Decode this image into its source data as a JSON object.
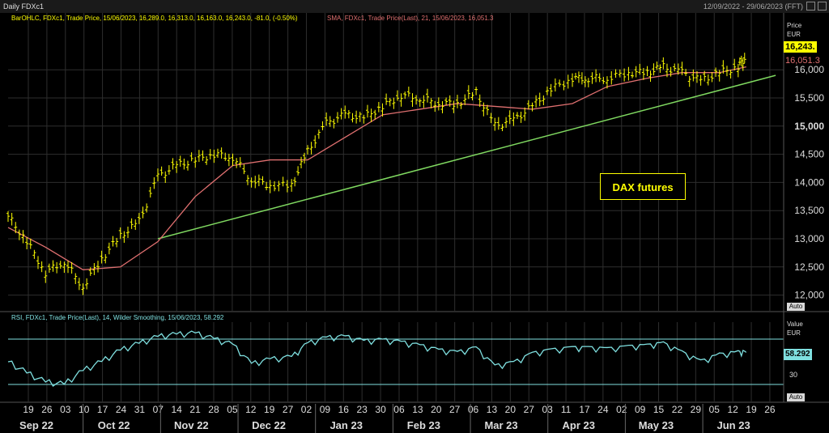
{
  "window": {
    "title": "Daily FDXc1",
    "date_range": "12/09/2022 - 29/06/2023 (FFT)"
  },
  "price_panel": {
    "legend_ohlc": "BarOHLC, FDXc1, Trade Price, 15/06/2023, 16,289.0, 16,313.0, 16,163.0, 16,243.0, -81.0, (-0.50%)",
    "legend_sma": "SMA, FDXc1, Trade Price(Last),  21, 15/06/2023, 16,051.3",
    "axis_title": "Price",
    "axis_unit": "EUR",
    "auto_label": "Auto",
    "last_price_tag": "16,243.",
    "sma_tag": "16,051.3",
    "callout": "DAX futures",
    "yticks": [
      "12,000",
      "12,500",
      "13,000",
      "13,500",
      "14,000",
      "14,500",
      "15,000",
      "15,500",
      "16,000"
    ]
  },
  "rsi_panel": {
    "legend": "RSI, FDXc1, Trade Price(Last),  14, Wilder Smoothing, 15/06/2023, 58.292",
    "axis_title": "Value",
    "axis_unit": "EUR",
    "auto_label": "Auto",
    "value_tag": "58.292",
    "level_label": "30"
  },
  "x_axis": {
    "day_ticks": [
      "19",
      "26",
      "03",
      "10",
      "17",
      "24",
      "31",
      "07",
      "14",
      "21",
      "28",
      "05",
      "12",
      "19",
      "27",
      "02",
      "09",
      "16",
      "23",
      "30",
      "06",
      "13",
      "20",
      "27",
      "06",
      "13",
      "20",
      "27",
      "03",
      "11",
      "17",
      "24",
      "02",
      "09",
      "15",
      "22",
      "29",
      "05",
      "12",
      "19",
      "26"
    ],
    "months": [
      "Sep 22",
      "Oct 22",
      "Nov 22",
      "Dec 22",
      "Jan 23",
      "Feb 23",
      "Mar 23",
      "Apr 23",
      "May 23",
      "Jun 23"
    ]
  },
  "colors": {
    "ohlc": "#ffff00",
    "sma": "#e07070",
    "trendline": "#7fd860",
    "rsi": "#7fe0e0",
    "grid": "#2e2e2e",
    "tag_bg": "#ffff00"
  },
  "chart_data": {
    "type": "line",
    "title": "Daily FDXc1",
    "price_range": [
      11750,
      16750
    ],
    "rsi_levels": [
      30,
      70
    ],
    "series": [
      {
        "name": "BarOHLC, FDXc1, Trade Price",
        "x": [
          "2022-09-12",
          "2022-09-19",
          "2022-09-26",
          "2022-10-03",
          "2022-10-10",
          "2022-10-17",
          "2022-10-24",
          "2022-10-31",
          "2022-11-07",
          "2022-11-14",
          "2022-11-21",
          "2022-11-28",
          "2022-12-05",
          "2022-12-12",
          "2022-12-19",
          "2022-12-27",
          "2023-01-02",
          "2023-01-09",
          "2023-01-16",
          "2023-01-23",
          "2023-01-30",
          "2023-02-06",
          "2023-02-13",
          "2023-02-20",
          "2023-02-27",
          "2023-03-06",
          "2023-03-13",
          "2023-03-20",
          "2023-03-27",
          "2023-04-03",
          "2023-04-11",
          "2023-04-17",
          "2023-04-24",
          "2023-05-02",
          "2023-05-09",
          "2023-05-15",
          "2023-05-22",
          "2023-05-29",
          "2023-06-05",
          "2023-06-12",
          "2023-06-15"
        ],
        "values": [
          13400,
          12950,
          12400,
          12600,
          12150,
          12650,
          13050,
          13300,
          14100,
          14300,
          14400,
          14500,
          14450,
          14050,
          13950,
          13950,
          14550,
          15050,
          15200,
          15150,
          15350,
          15550,
          15500,
          15400,
          15400,
          15600,
          15000,
          15100,
          15350,
          15650,
          15850,
          15850,
          15850,
          15950,
          15950,
          16050,
          15950,
          15800,
          15950,
          16050,
          16243
        ]
      },
      {
        "name": "SMA, FDXc1, Trade Price(Last), 21",
        "x": [
          "2022-09-12",
          "2022-09-26",
          "2022-10-10",
          "2022-10-24",
          "2022-11-07",
          "2022-11-21",
          "2022-12-05",
          "2022-12-19",
          "2023-01-02",
          "2023-01-16",
          "2023-01-30",
          "2023-02-13",
          "2023-02-27",
          "2023-03-13",
          "2023-03-27",
          "2023-04-11",
          "2023-04-24",
          "2023-05-09",
          "2023-05-22",
          "2023-06-05",
          "2023-06-15"
        ],
        "values": [
          13200,
          12850,
          12450,
          12500,
          12950,
          13750,
          14300,
          14400,
          14400,
          14800,
          15200,
          15300,
          15400,
          15350,
          15300,
          15400,
          15700,
          15850,
          15950,
          15950,
          16051.3
        ]
      },
      {
        "name": "RSI, FDXc1, Trade Price(Last), 14, Wilder Smoothing",
        "x": [
          "2022-09-12",
          "2022-09-19",
          "2022-09-26",
          "2022-10-03",
          "2022-10-10",
          "2022-10-17",
          "2022-10-24",
          "2022-10-31",
          "2022-11-07",
          "2022-11-14",
          "2022-11-21",
          "2022-11-28",
          "2022-12-05",
          "2022-12-12",
          "2022-12-19",
          "2022-12-27",
          "2023-01-02",
          "2023-01-09",
          "2023-01-16",
          "2023-01-23",
          "2023-01-30",
          "2023-02-06",
          "2023-02-13",
          "2023-02-20",
          "2023-02-27",
          "2023-03-06",
          "2023-03-13",
          "2023-03-20",
          "2023-03-27",
          "2023-04-03",
          "2023-04-11",
          "2023-04-17",
          "2023-04-24",
          "2023-05-02",
          "2023-05-09",
          "2023-05-15",
          "2023-05-22",
          "2023-05-29",
          "2023-06-05",
          "2023-06-12",
          "2023-06-15"
        ],
        "values": [
          50,
          40,
          32,
          30,
          42,
          50,
          60,
          66,
          72,
          74,
          75,
          70,
          65,
          48,
          52,
          54,
          66,
          71,
          72,
          68,
          69,
          67,
          64,
          60,
          58,
          62,
          46,
          49,
          57,
          60,
          62,
          62,
          61,
          63,
          64,
          66,
          58,
          50,
          56,
          58,
          58.292
        ]
      }
    ],
    "trendline": {
      "x": [
        "2022-11-07",
        "2023-06-26"
      ],
      "values": [
        13000,
        15900
      ]
    }
  }
}
